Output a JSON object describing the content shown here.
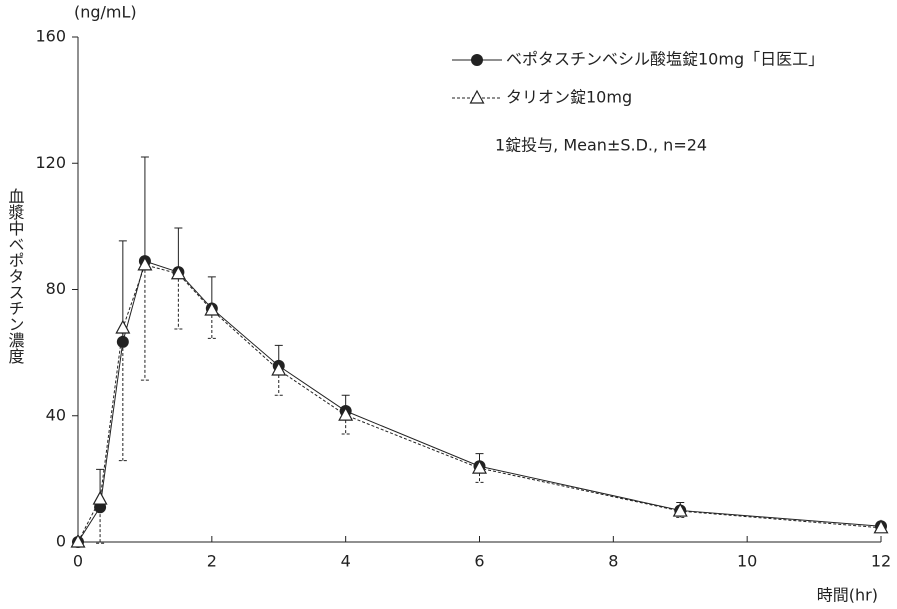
{
  "chart_data": {
    "type": "line",
    "y_unit": "(ng/mL)",
    "ylabel": "血漿中ベポタスチン濃度",
    "xlabel": "時間(hr)",
    "annotation": "1錠投与, Mean±S.D., n=24",
    "x": [
      0,
      0.33,
      0.67,
      1,
      1.5,
      2,
      3,
      4,
      6,
      9,
      12
    ],
    "series": [
      {
        "name": "ベポタスチンベシル酸塩錠10mg「日医工」",
        "color": "#222222",
        "marker": "circle",
        "dash": "solid",
        "error_side": "upper",
        "values": [
          0,
          11,
          63.4,
          89,
          85.5,
          74,
          55.8,
          41.5,
          24,
          10,
          5
        ],
        "errors": [
          0,
          12,
          32,
          33,
          14,
          10,
          6.5,
          5,
          4,
          2.5,
          1
        ]
      },
      {
        "name": "タリオン錠10mg",
        "color": "#222222",
        "marker": "triangle",
        "dash": "dashed",
        "error_side": "lower",
        "values": [
          0,
          13.6,
          67.8,
          87.8,
          85,
          73.5,
          54.5,
          40.2,
          23.4,
          9.8,
          4.5
        ],
        "errors": [
          0,
          14,
          42,
          36.5,
          17.5,
          9,
          8,
          6,
          4.5,
          2,
          1
        ]
      }
    ],
    "xlim": [
      0,
      12
    ],
    "xticks": [
      0,
      2,
      4,
      6,
      8,
      10,
      12
    ],
    "ylim": [
      0,
      160
    ],
    "yticks": [
      0,
      40,
      80,
      120,
      160
    ],
    "legend": "upper right"
  }
}
